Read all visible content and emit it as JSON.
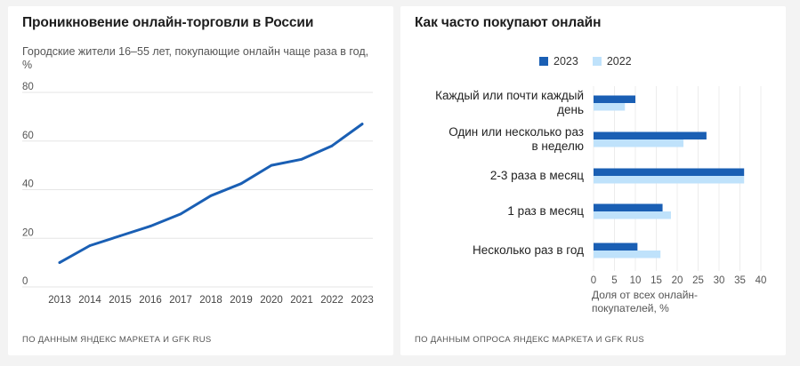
{
  "left_card": {
    "title": "Проникновение онлайн-торговли в России",
    "subtitle": "Городские жители 16–55 лет, покупающие онлайн чаще раза в год, %",
    "source": "ПО ДАННЫМ ЯНДЕКС МАРКЕТА И GFK RUS"
  },
  "right_card": {
    "title": "Как часто покупают онлайн",
    "source": "ПО ДАННЫМ ОПРОСА ЯНДЕКС МАРКЕТА И GFK RUS",
    "x_caption": "Доля от всех онлайн-покупателей, %"
  },
  "chart_data": [
    {
      "type": "line",
      "title": "Проникновение онлайн-торговли в России",
      "subtitle": "Городские жители 16–55 лет, покупающие онлайн чаще раза в год, %",
      "x": [
        "2013",
        "2014",
        "2015",
        "2016",
        "2017",
        "2018",
        "2019",
        "2020",
        "2021",
        "2022",
        "2023"
      ],
      "series": [
        {
          "values": [
            10,
            17,
            21,
            25,
            30,
            37.5,
            42.5,
            50,
            52.5,
            58,
            67
          ],
          "color": "#1a5fb4"
        }
      ],
      "ylim": [
        0,
        80
      ],
      "yticks": [
        0,
        20,
        40,
        60,
        80
      ],
      "grid": true,
      "legend": "none"
    },
    {
      "type": "bar",
      "orientation": "horizontal",
      "title": "Как часто покупают онлайн",
      "categories": [
        [
          "Каждый или почти каждый",
          "день"
        ],
        [
          "Один или несколько раз",
          "в неделю"
        ],
        [
          "2-3 раза в месяц"
        ],
        [
          "1 раз в месяц"
        ],
        [
          "Несколько раз в год"
        ]
      ],
      "series": [
        {
          "name": "2023",
          "values": [
            10,
            27,
            36,
            16.5,
            10.5
          ],
          "color": "#1a5fb4"
        },
        {
          "name": "2022",
          "values": [
            7.5,
            21.5,
            36,
            18.5,
            16
          ],
          "color": "#bfe2fb"
        }
      ],
      "xlim": [
        0,
        40
      ],
      "xticks": [
        0,
        5,
        10,
        15,
        20,
        25,
        30,
        35,
        40
      ],
      "xlabel": "Доля от всех онлайн-покупателей, %",
      "grid": true,
      "legend": "top"
    }
  ]
}
